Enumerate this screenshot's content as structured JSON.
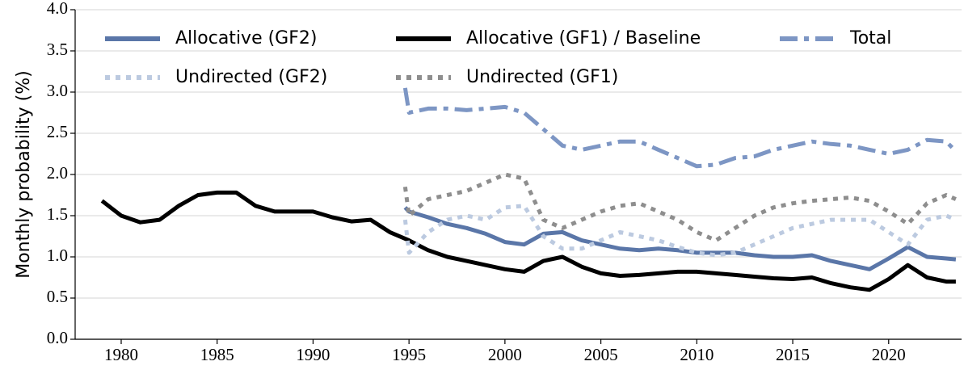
{
  "chart_data": {
    "type": "line",
    "y_label": "Monthly probability (%)",
    "xlim": [
      1977.6,
      2023.8
    ],
    "ylim": [
      0,
      4
    ],
    "xticks": [
      1980,
      1985,
      1990,
      1995,
      2000,
      2005,
      2010,
      2015,
      2020
    ],
    "yticks": [
      {
        "value": 0,
        "label": "0.0"
      },
      0.5,
      {
        "value": 1,
        "label": "1.0"
      },
      1.5,
      {
        "value": 2,
        "label": "2.0"
      },
      2.5,
      {
        "value": 3,
        "label": "3.0"
      },
      3.5,
      {
        "value": 4,
        "label": "4.0"
      }
    ],
    "grid": true,
    "legend": "top",
    "series": [
      {
        "name": "Allocative (GF2)",
        "color": "#5a76a8",
        "style": "solid",
        "x": [
          1994.8,
          1995,
          1996,
          1997,
          1998,
          1999,
          2000,
          2001,
          2002,
          2003,
          2004,
          2005,
          2006,
          2007,
          2008,
          2009,
          2010,
          2011,
          2012,
          2013,
          2014,
          2015,
          2016,
          2017,
          2018,
          2019,
          2020,
          2021,
          2022,
          2023,
          2023.5
        ],
        "values": [
          1.6,
          1.55,
          1.48,
          1.4,
          1.35,
          1.28,
          1.18,
          1.15,
          1.28,
          1.3,
          1.2,
          1.15,
          1.1,
          1.08,
          1.1,
          1.08,
          1.05,
          1.05,
          1.05,
          1.02,
          1.0,
          1.0,
          1.02,
          0.95,
          0.9,
          0.85,
          0.98,
          1.12,
          1.0,
          0.98,
          0.97
        ]
      },
      {
        "name": "Allocative (GF1) / Baseline",
        "color": "#000000",
        "style": "solid",
        "x": [
          1979,
          1980,
          1981,
          1982,
          1983,
          1984,
          1985,
          1986,
          1987,
          1988,
          1989,
          1990,
          1991,
          1992,
          1993,
          1994,
          1995,
          1996,
          1997,
          1998,
          1999,
          2000,
          2001,
          2002,
          2003,
          2004,
          2005,
          2006,
          2007,
          2008,
          2009,
          2010,
          2011,
          2012,
          2013,
          2014,
          2015,
          2016,
          2017,
          2018,
          2019,
          2020,
          2021,
          2022,
          2023,
          2023.5
        ],
        "values": [
          1.68,
          1.5,
          1.42,
          1.45,
          1.62,
          1.75,
          1.78,
          1.78,
          1.62,
          1.55,
          1.55,
          1.55,
          1.48,
          1.43,
          1.45,
          1.3,
          1.2,
          1.08,
          1.0,
          0.95,
          0.9,
          0.85,
          0.82,
          0.95,
          1.0,
          0.88,
          0.8,
          0.77,
          0.78,
          0.8,
          0.82,
          0.82,
          0.8,
          0.78,
          0.76,
          0.74,
          0.73,
          0.75,
          0.68,
          0.63,
          0.6,
          0.73,
          0.9,
          0.75,
          0.7,
          0.7
        ]
      },
      {
        "name": "Total",
        "color": "#7d96c4",
        "style": "dashdot",
        "x": [
          1994.8,
          1995,
          1996,
          1997,
          1998,
          1999,
          2000,
          2001,
          2002,
          2003,
          2004,
          2005,
          2006,
          2007,
          2008,
          2009,
          2010,
          2011,
          2012,
          2013,
          2014,
          2015,
          2016,
          2017,
          2018,
          2019,
          2020,
          2021,
          2022,
          2023,
          2023.5
        ],
        "values": [
          3.05,
          2.75,
          2.8,
          2.8,
          2.78,
          2.8,
          2.82,
          2.75,
          2.55,
          2.35,
          2.3,
          2.35,
          2.4,
          2.4,
          2.3,
          2.2,
          2.1,
          2.12,
          2.2,
          2.22,
          2.3,
          2.35,
          2.4,
          2.37,
          2.35,
          2.3,
          2.25,
          2.3,
          2.42,
          2.4,
          2.28
        ]
      },
      {
        "name": "Undirected (GF2)",
        "color": "#bccae0",
        "style": "dotted",
        "x": [
          1994.8,
          1995,
          1996,
          1997,
          1998,
          1999,
          2000,
          2001,
          2002,
          2003,
          2004,
          2005,
          2006,
          2007,
          2008,
          2009,
          2010,
          2011,
          2012,
          2013,
          2014,
          2015,
          2016,
          2017,
          2018,
          2019,
          2020,
          2021,
          2022,
          2023,
          2023.5
        ],
        "values": [
          1.45,
          1.05,
          1.3,
          1.45,
          1.5,
          1.45,
          1.6,
          1.62,
          1.25,
          1.1,
          1.1,
          1.2,
          1.3,
          1.25,
          1.2,
          1.12,
          1.05,
          1.02,
          1.05,
          1.15,
          1.25,
          1.35,
          1.4,
          1.45,
          1.45,
          1.45,
          1.3,
          1.15,
          1.45,
          1.5,
          1.45
        ]
      },
      {
        "name": "Undirected (GF1)",
        "color": "#8e8e8e",
        "style": "dotted",
        "x": [
          1994.8,
          1995,
          1996,
          1997,
          1998,
          1999,
          2000,
          2001,
          2002,
          2003,
          2004,
          2005,
          2006,
          2007,
          2008,
          2009,
          2010,
          2011,
          2012,
          2013,
          2014,
          2015,
          2016,
          2017,
          2018,
          2019,
          2020,
          2021,
          2022,
          2023,
          2023.5
        ],
        "values": [
          1.85,
          1.5,
          1.7,
          1.75,
          1.8,
          1.9,
          2.0,
          1.95,
          1.45,
          1.35,
          1.45,
          1.55,
          1.62,
          1.65,
          1.55,
          1.45,
          1.3,
          1.2,
          1.35,
          1.5,
          1.6,
          1.65,
          1.68,
          1.7,
          1.72,
          1.68,
          1.55,
          1.4,
          1.65,
          1.75,
          1.7
        ]
      }
    ]
  }
}
